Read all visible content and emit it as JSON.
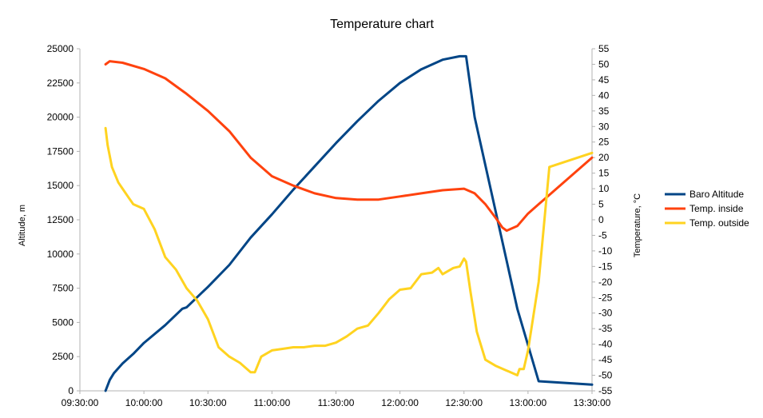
{
  "chart_data": {
    "type": "line",
    "title": "Temperature chart",
    "ylabel": "Altitude, m",
    "y2label": "Temperature, °C",
    "xlabel": "",
    "x_ticks": [
      "09:30:00",
      "10:00:00",
      "10:30:00",
      "11:00:00",
      "11:30:00",
      "12:00:00",
      "12:30:00",
      "13:00:00",
      "13:30:00"
    ],
    "xlim": [
      "09:30:00",
      "13:30:00"
    ],
    "y_ticks": [
      0,
      2500,
      5000,
      7500,
      10000,
      12500,
      15000,
      17500,
      20000,
      22500,
      25000
    ],
    "ylim": [
      0,
      25000
    ],
    "y2_ticks": [
      -55,
      -50,
      -45,
      -40,
      -35,
      -30,
      -25,
      -20,
      -15,
      -10,
      -5,
      0,
      5,
      10,
      15,
      20,
      25,
      30,
      35,
      40,
      45,
      50,
      55
    ],
    "y2lim": [
      -55,
      55
    ],
    "grid": false,
    "legend_position": "right",
    "series": [
      {
        "name": "Baro Altitude",
        "axis": "left",
        "color": "#004586",
        "x": [
          "09:42:00",
          "09:44:00",
          "09:46:00",
          "09:50:00",
          "09:55:00",
          "10:00:00",
          "10:10:00",
          "10:18:00",
          "10:20:00",
          "10:30:00",
          "10:40:00",
          "10:50:00",
          "11:00:00",
          "11:10:00",
          "11:20:00",
          "11:30:00",
          "11:40:00",
          "11:50:00",
          "12:00:00",
          "12:10:00",
          "12:20:00",
          "12:28:00",
          "12:31:00",
          "12:35:00",
          "12:45:00",
          "12:55:00",
          "13:05:00",
          "13:30:00"
        ],
        "values": [
          0,
          800,
          1300,
          2000,
          2700,
          3500,
          4800,
          6000,
          6100,
          7600,
          9200,
          11200,
          12900,
          14700,
          16400,
          18100,
          19700,
          21200,
          22500,
          23500,
          24200,
          24450,
          24450,
          20000,
          13000,
          6000,
          700,
          450
        ]
      },
      {
        "name": "Temp. inside",
        "axis": "right",
        "color": "#ff420e",
        "x": [
          "09:42:00",
          "09:44:00",
          "09:50:00",
          "10:00:00",
          "10:10:00",
          "10:17:00",
          "10:20:00",
          "10:30:00",
          "10:40:00",
          "10:50:00",
          "11:00:00",
          "11:10:00",
          "11:20:00",
          "11:30:00",
          "11:40:00",
          "11:50:00",
          "12:00:00",
          "12:10:00",
          "12:20:00",
          "12:30:00",
          "12:35:00",
          "12:40:00",
          "12:45:00",
          "12:48:00",
          "12:50:00",
          "12:55:00",
          "13:00:00",
          "13:05:00",
          "13:10:00",
          "13:30:00"
        ],
        "values": [
          50,
          51,
          50.5,
          48.5,
          45.5,
          42,
          40.5,
          35,
          28.5,
          20,
          14,
          11,
          8.5,
          7,
          6.5,
          6.5,
          7.5,
          8.5,
          9.5,
          10,
          8.5,
          5,
          0.5,
          -2.5,
          -3.5,
          -2,
          2,
          5,
          8,
          20
        ]
      },
      {
        "name": "Temp. outside",
        "axis": "right",
        "color": "#ffd320",
        "x": [
          "09:42:00",
          "09:43:00",
          "09:45:00",
          "09:48:00",
          "09:50:00",
          "09:53:00",
          "09:55:00",
          "10:00:00",
          "10:05:00",
          "10:10:00",
          "10:15:00",
          "10:20:00",
          "10:25:00",
          "10:30:00",
          "10:35:00",
          "10:40:00",
          "10:45:00",
          "10:50:00",
          "10:52:00",
          "10:55:00",
          "11:00:00",
          "11:05:00",
          "11:10:00",
          "11:15:00",
          "11:20:00",
          "11:25:00",
          "11:30:00",
          "11:35:00",
          "11:40:00",
          "11:45:00",
          "11:50:00",
          "11:55:00",
          "12:00:00",
          "12:05:00",
          "12:10:00",
          "12:15:00",
          "12:18:00",
          "12:20:00",
          "12:25:00",
          "12:28:00",
          "12:30:00",
          "12:31:00",
          "12:33:00",
          "12:36:00",
          "12:40:00",
          "12:45:00",
          "12:50:00",
          "12:55:00",
          "12:56:00",
          "12:58:00",
          "13:00:00",
          "13:05:00",
          "13:10:00",
          "13:30:00"
        ],
        "values": [
          29.5,
          24,
          17,
          12,
          10,
          7,
          5,
          3.5,
          -3,
          -12,
          -16,
          -22,
          -26,
          -32,
          -41,
          -44,
          -46,
          -49,
          -49,
          -44,
          -42,
          -41.5,
          -41,
          -41,
          -40.5,
          -40.5,
          -39.5,
          -37.5,
          -35,
          -34,
          -30,
          -25.5,
          -22.5,
          -22,
          -17.5,
          -17,
          -15.5,
          -17.5,
          -15.5,
          -15,
          -12.5,
          -13.5,
          -23,
          -36,
          -45,
          -47,
          -48.5,
          -50,
          -48,
          -48,
          -42,
          -20,
          17,
          21.5
        ]
      }
    ]
  }
}
